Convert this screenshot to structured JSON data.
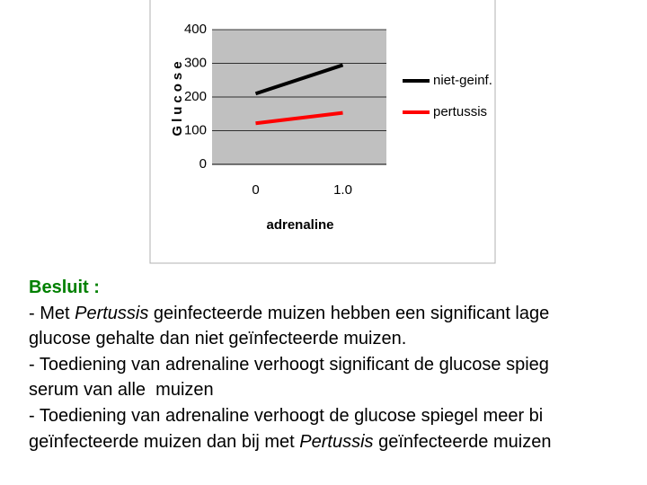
{
  "chart_data": {
    "type": "line",
    "y_label": "Glucose",
    "x_label": "adrenaline",
    "categories": [
      "0",
      "1.0"
    ],
    "series": [
      {
        "name": "niet-geinf.",
        "color": "#000000",
        "values": [
          210,
          295
        ]
      },
      {
        "name": "pertussis",
        "color": "#ff0000",
        "values": [
          122,
          153
        ]
      }
    ],
    "ylim": [
      0,
      400
    ],
    "yticks": [
      0,
      100,
      200,
      300,
      400
    ],
    "grid": true,
    "legend": "right"
  },
  "text": {
    "heading": "Besluit :",
    "lines": [
      [
        "- Met ",
        {
          "text": "Pertussis",
          "italic": true
        },
        " geinfecteerde muizen hebben een significant lage"
      ],
      [
        "glucose gehalte dan niet geïnfecteerde muizen."
      ],
      [
        "- Toediening van adrenaline verhoogt significant de glucose spieg"
      ],
      [
        "serum van alle  muizen"
      ],
      [
        "- Toediening van adrenaline verhoogt de glucose spiegel meer bi"
      ],
      [
        "geïnfecteerde muizen dan bij met ",
        {
          "text": "Pertussis",
          "italic": true
        },
        " geïnfecteerde muizen"
      ]
    ]
  }
}
